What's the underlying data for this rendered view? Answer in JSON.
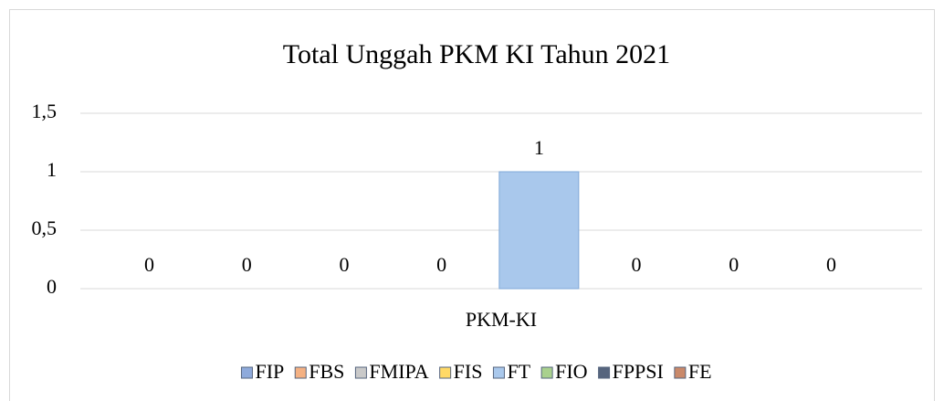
{
  "chart_data": {
    "type": "bar",
    "title": "Total Unggah PKM KI Tahun 2021",
    "categories": [
      "PKM-KI"
    ],
    "series": [
      {
        "name": "FIP",
        "color": "#8eaadb",
        "values": [
          0
        ]
      },
      {
        "name": "FBS",
        "color": "#f4b183",
        "values": [
          0
        ]
      },
      {
        "name": "FMIPA",
        "color": "#c9c9c9",
        "values": [
          0
        ]
      },
      {
        "name": "FIS",
        "color": "#ffd966",
        "values": [
          0
        ]
      },
      {
        "name": "FT",
        "color": "#a9c8ec",
        "values": [
          1
        ]
      },
      {
        "name": "FIO",
        "color": "#a9d18e",
        "values": [
          0
        ]
      },
      {
        "name": "FPPSI",
        "color": "#56657e",
        "values": [
          0
        ]
      },
      {
        "name": "FE",
        "color": "#c9896a",
        "values": [
          0
        ]
      }
    ],
    "ylim": [
      0,
      1.5
    ],
    "yticks": [
      0,
      {
        "value": 0.5,
        "label": "0,5"
      },
      1,
      {
        "value": 1.5,
        "label": "1,5"
      }
    ],
    "grid": true,
    "legend": "bottom"
  }
}
